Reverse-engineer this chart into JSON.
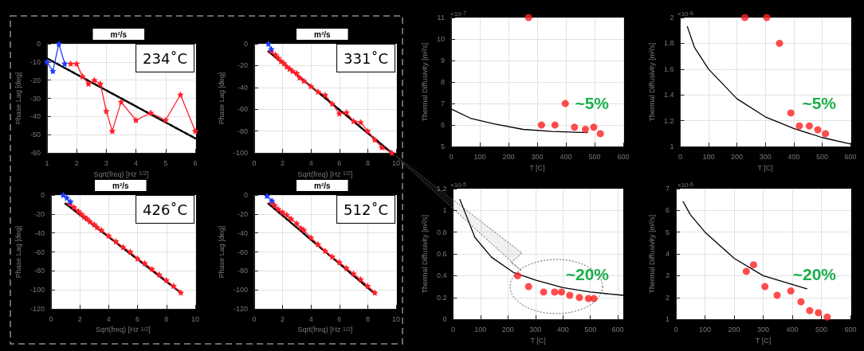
{
  "chart_data": [
    {
      "type": "line",
      "title": "m²/s",
      "xlabel": "Sqrt(freq) [Hz $^{1/2}$]",
      "ylabel": "Phase Lag [deg]",
      "annotations": [
        "234˚C"
      ],
      "xlim": [
        1,
        6
      ],
      "xticks": [
        1,
        2,
        3,
        4,
        5,
        6
      ],
      "ylim": [
        -60,
        0
      ],
      "yticks": [
        -60,
        -50,
        -40,
        -30,
        -20,
        -10,
        0
      ],
      "grid": true,
      "marker": "star",
      "line_style": "solid",
      "series": [
        {
          "color": "#1f3cff",
          "x": [
            1,
            1.2,
            1.4,
            1.6
          ],
          "values": [
            -10,
            -15,
            0,
            -11
          ]
        },
        {
          "color": "#ff1f2a",
          "x": [
            1.8,
            2.0,
            2.2,
            2.4,
            2.6,
            2.8,
            3.0,
            3.2,
            3.5,
            4.0,
            4.5,
            5.0,
            5.5,
            6.0
          ],
          "values": [
            -11,
            -11,
            -18,
            -22,
            -20,
            -22,
            -37,
            -48,
            -32,
            -42,
            -38,
            -42,
            -28,
            -48
          ]
        },
        {
          "color": "#000000",
          "type": "line",
          "marker": "none",
          "line_style": "dashed",
          "x": [
            1,
            6
          ],
          "values": [
            -8,
            -52
          ]
        }
      ]
    },
    {
      "type": "line",
      "title": "m²/s",
      "xlabel": "Sqrt(freq) [Hz $^{1/2}$]",
      "ylabel": "Phase Lag [deg]",
      "annotations": [
        "331˚C"
      ],
      "xlim": [
        0,
        10
      ],
      "xticks": [
        0,
        2,
        4,
        6,
        8,
        10
      ],
      "ylim": [
        -100,
        0
      ],
      "yticks": [
        -100,
        -80,
        -60,
        -40,
        -20,
        0
      ],
      "grid": true,
      "marker": "star",
      "line_style": "solid",
      "series": [
        {
          "color": "#1f3cff",
          "x": [
            1,
            1.2
          ],
          "values": [
            0,
            -5
          ]
        },
        {
          "color": "#ff1f2a",
          "x": [
            1.2,
            1.5,
            1.7,
            1.9,
            2.1,
            2.3,
            2.5,
            2.7,
            3.0,
            3.2,
            3.5,
            4,
            4.5,
            5,
            5.5,
            6,
            6.5,
            7,
            7.5,
            8,
            8.5,
            9,
            9.7
          ],
          "values": [
            -7,
            -10,
            -13,
            -16,
            -18,
            -21,
            -23,
            -25,
            -27,
            -31,
            -34,
            -39,
            -44,
            -47,
            -55,
            -64,
            -63,
            -71,
            -72,
            -80,
            -88,
            -95,
            -100
          ]
        },
        {
          "color": "#000000",
          "type": "line",
          "marker": "none",
          "line_style": "dashed",
          "x": [
            1,
            9.7
          ],
          "values": [
            -7,
            -100
          ]
        }
      ]
    },
    {
      "type": "line",
      "title": "m²/s",
      "xlabel": "Sqrt(freq) [Hz $^{1/2}$]",
      "ylabel": "Phase Lag [deg]",
      "annotations": [
        "426˚C"
      ],
      "xlim": [
        0,
        10
      ],
      "xticks": [
        0,
        2,
        4,
        6,
        8,
        10
      ],
      "ylim": [
        -120,
        0
      ],
      "yticks": [
        -120,
        -100,
        -80,
        -60,
        -40,
        -20,
        0
      ],
      "grid": true,
      "marker": "star",
      "line_style": "solid",
      "series": [
        {
          "color": "#1f3cff",
          "x": [
            0.85,
            1.1,
            1.35
          ],
          "values": [
            0,
            -3,
            -7
          ]
        },
        {
          "color": "#ff1f2a",
          "x": [
            1.3,
            1.6,
            1.9,
            2.1,
            2.3,
            2.5,
            2.7,
            3,
            3.2,
            3.5,
            4,
            4.5,
            5,
            5.5,
            6,
            6.5,
            7,
            7.5,
            8,
            8.5,
            9
          ],
          "values": [
            -9,
            -13,
            -17,
            -20,
            -23,
            -25,
            -28,
            -31,
            -34,
            -37,
            -43,
            -49,
            -55,
            -60,
            -67,
            -72,
            -78,
            -84,
            -90,
            -96,
            -103
          ]
        },
        {
          "color": "#000000",
          "type": "line",
          "marker": "none",
          "line_style": "dashed",
          "x": [
            1,
            9
          ],
          "values": [
            -9,
            -103
          ]
        }
      ]
    },
    {
      "type": "line",
      "title": "m²/s",
      "xlabel": "Sqrt(freq) [Hz $^{1/2}$]",
      "ylabel": "Phase Lag [deg]",
      "annotations": [
        "512˚C"
      ],
      "xlim": [
        0,
        10
      ],
      "xticks": [
        0,
        2,
        4,
        6,
        8,
        10
      ],
      "ylim": [
        -120,
        0
      ],
      "yticks": [
        -120,
        -100,
        -80,
        -60,
        -40,
        -20,
        0
      ],
      "grid": true,
      "marker": "star",
      "line_style": "solid",
      "series": [
        {
          "color": "#1f3cff",
          "x": [
            0.9,
            1.25
          ],
          "values": [
            -1,
            -6
          ]
        },
        {
          "color": "#ff1f2a",
          "x": [
            1.25,
            1.45,
            1.7,
            2,
            2.3,
            2.6,
            3,
            3.3,
            3.5,
            4,
            4.5,
            5,
            5.5,
            6,
            6.5,
            7,
            7.5,
            8,
            8.5
          ],
          "values": [
            -8,
            -11,
            -15,
            -18,
            -21,
            -25,
            -30,
            -35,
            -37,
            -45,
            -52,
            -59,
            -65,
            -71,
            -77,
            -83,
            -89,
            -96,
            -103
          ]
        },
        {
          "color": "#000000",
          "type": "line",
          "marker": "none",
          "line_style": "dashed",
          "x": [
            1,
            8.5
          ],
          "values": [
            -9,
            -104
          ]
        }
      ]
    },
    {
      "type": "scatter",
      "xlabel": "T [C]",
      "ylabel": "Thermal Diffusivity [m²/s]",
      "annotations": [
        "×10$^{-7}$",
        "~5%"
      ],
      "xlim": [
        0,
        600
      ],
      "xticks": [
        0,
        100,
        200,
        300,
        400,
        500,
        600
      ],
      "ylim": [
        5,
        11
      ],
      "yticks": [
        5,
        6,
        7,
        8,
        9,
        10,
        11
      ],
      "grid": true,
      "marker": "circle",
      "series": [
        {
          "color": "#ff1f1f",
          "x": [
            270,
            315,
            362,
            398,
            430,
            468,
            497,
            520
          ],
          "values": [
            11,
            6,
            6,
            7,
            5.9,
            5.8,
            5.9,
            5.6
          ]
        },
        {
          "color": "#000000",
          "type": "line",
          "marker": "none",
          "line_style": "solid",
          "x": [
            0,
            70,
            150,
            250,
            350,
            475
          ],
          "values": [
            6.75,
            6.3,
            6.05,
            5.8,
            5.7,
            5.65
          ]
        }
      ]
    },
    {
      "type": "scatter",
      "xlabel": "T [C]",
      "ylabel": "Thermal Diffusivity [m²/s]",
      "annotations": [
        "×10$^{-6}$",
        "~5%"
      ],
      "xlim": [
        0,
        600
      ],
      "xticks": [
        0,
        100,
        200,
        300,
        400,
        500,
        600
      ],
      "ylim": [
        1,
        2
      ],
      "yticks": [
        1,
        1.2,
        1.4,
        1.6,
        1.8,
        2
      ],
      "grid": true,
      "marker": "circle",
      "series": [
        {
          "color": "#ff1f1f",
          "x": [
            228,
            305,
            350,
            390,
            420,
            455,
            485,
            512
          ],
          "values": [
            2,
            2,
            1.8,
            1.26,
            1.16,
            1.16,
            1.13,
            1.1
          ]
        },
        {
          "color": "#000000",
          "type": "line",
          "marker": "none",
          "line_style": "solid",
          "x": [
            25,
            50,
            100,
            200,
            300,
            400,
            500,
            600
          ],
          "values": [
            1.93,
            1.77,
            1.6,
            1.37,
            1.23,
            1.14,
            1.07,
            1.02
          ]
        }
      ]
    },
    {
      "type": "scatter",
      "xlabel": "T [C]",
      "ylabel": "Thermal Diffusivity [m²/s]",
      "annotations": [
        "×10$^{-5}$",
        "~20%"
      ],
      "xlim": [
        0,
        620
      ],
      "xticks": [
        0,
        100,
        200,
        300,
        400,
        500,
        600
      ],
      "ylim": [
        0,
        1.2
      ],
      "yticks": [
        0,
        0.2,
        0.4,
        0.6,
        0.8,
        1,
        1.2
      ],
      "grid": true,
      "marker": "circle",
      "series": [
        {
          "color": "#ff1f1f",
          "x": [
            235,
            275,
            330,
            370,
            395,
            425,
            460,
            493,
            513
          ],
          "values": [
            0.4,
            0.3,
            0.25,
            0.25,
            0.25,
            0.22,
            0.2,
            0.19,
            0.19
          ]
        },
        {
          "color": "#000000",
          "type": "line",
          "marker": "none",
          "line_style": "solid",
          "x": [
            25,
            80,
            140,
            220,
            300,
            400,
            500,
            620
          ],
          "values": [
            1.1,
            0.75,
            0.57,
            0.43,
            0.36,
            0.29,
            0.25,
            0.22
          ]
        }
      ]
    },
    {
      "type": "scatter",
      "xlabel": "T [C]",
      "ylabel": "Thermal Diffusivity [m²/s]",
      "annotations": [
        "×10$^{-6}$",
        "~20%"
      ],
      "xlim": [
        0,
        600
      ],
      "xticks": [
        0,
        100,
        200,
        300,
        400,
        500,
        600
      ],
      "ylim": [
        1,
        7
      ],
      "yticks": [
        1,
        2,
        3,
        4,
        5,
        6,
        7
      ],
      "grid": true,
      "marker": "circle",
      "series": [
        {
          "color": "#ff1f1f",
          "x": [
            242,
            267,
            306,
            348,
            395,
            430,
            460,
            490,
            520
          ],
          "values": [
            3.2,
            3.5,
            2.5,
            2.1,
            2.3,
            1.8,
            1.4,
            1.3,
            1.1
          ]
        },
        {
          "color": "#000000",
          "type": "line",
          "marker": "none",
          "line_style": "solid",
          "x": [
            25,
            50,
            100,
            200,
            300,
            450
          ],
          "values": [
            6.4,
            5.8,
            5,
            3.8,
            3,
            2.4
          ]
        }
      ]
    }
  ]
}
